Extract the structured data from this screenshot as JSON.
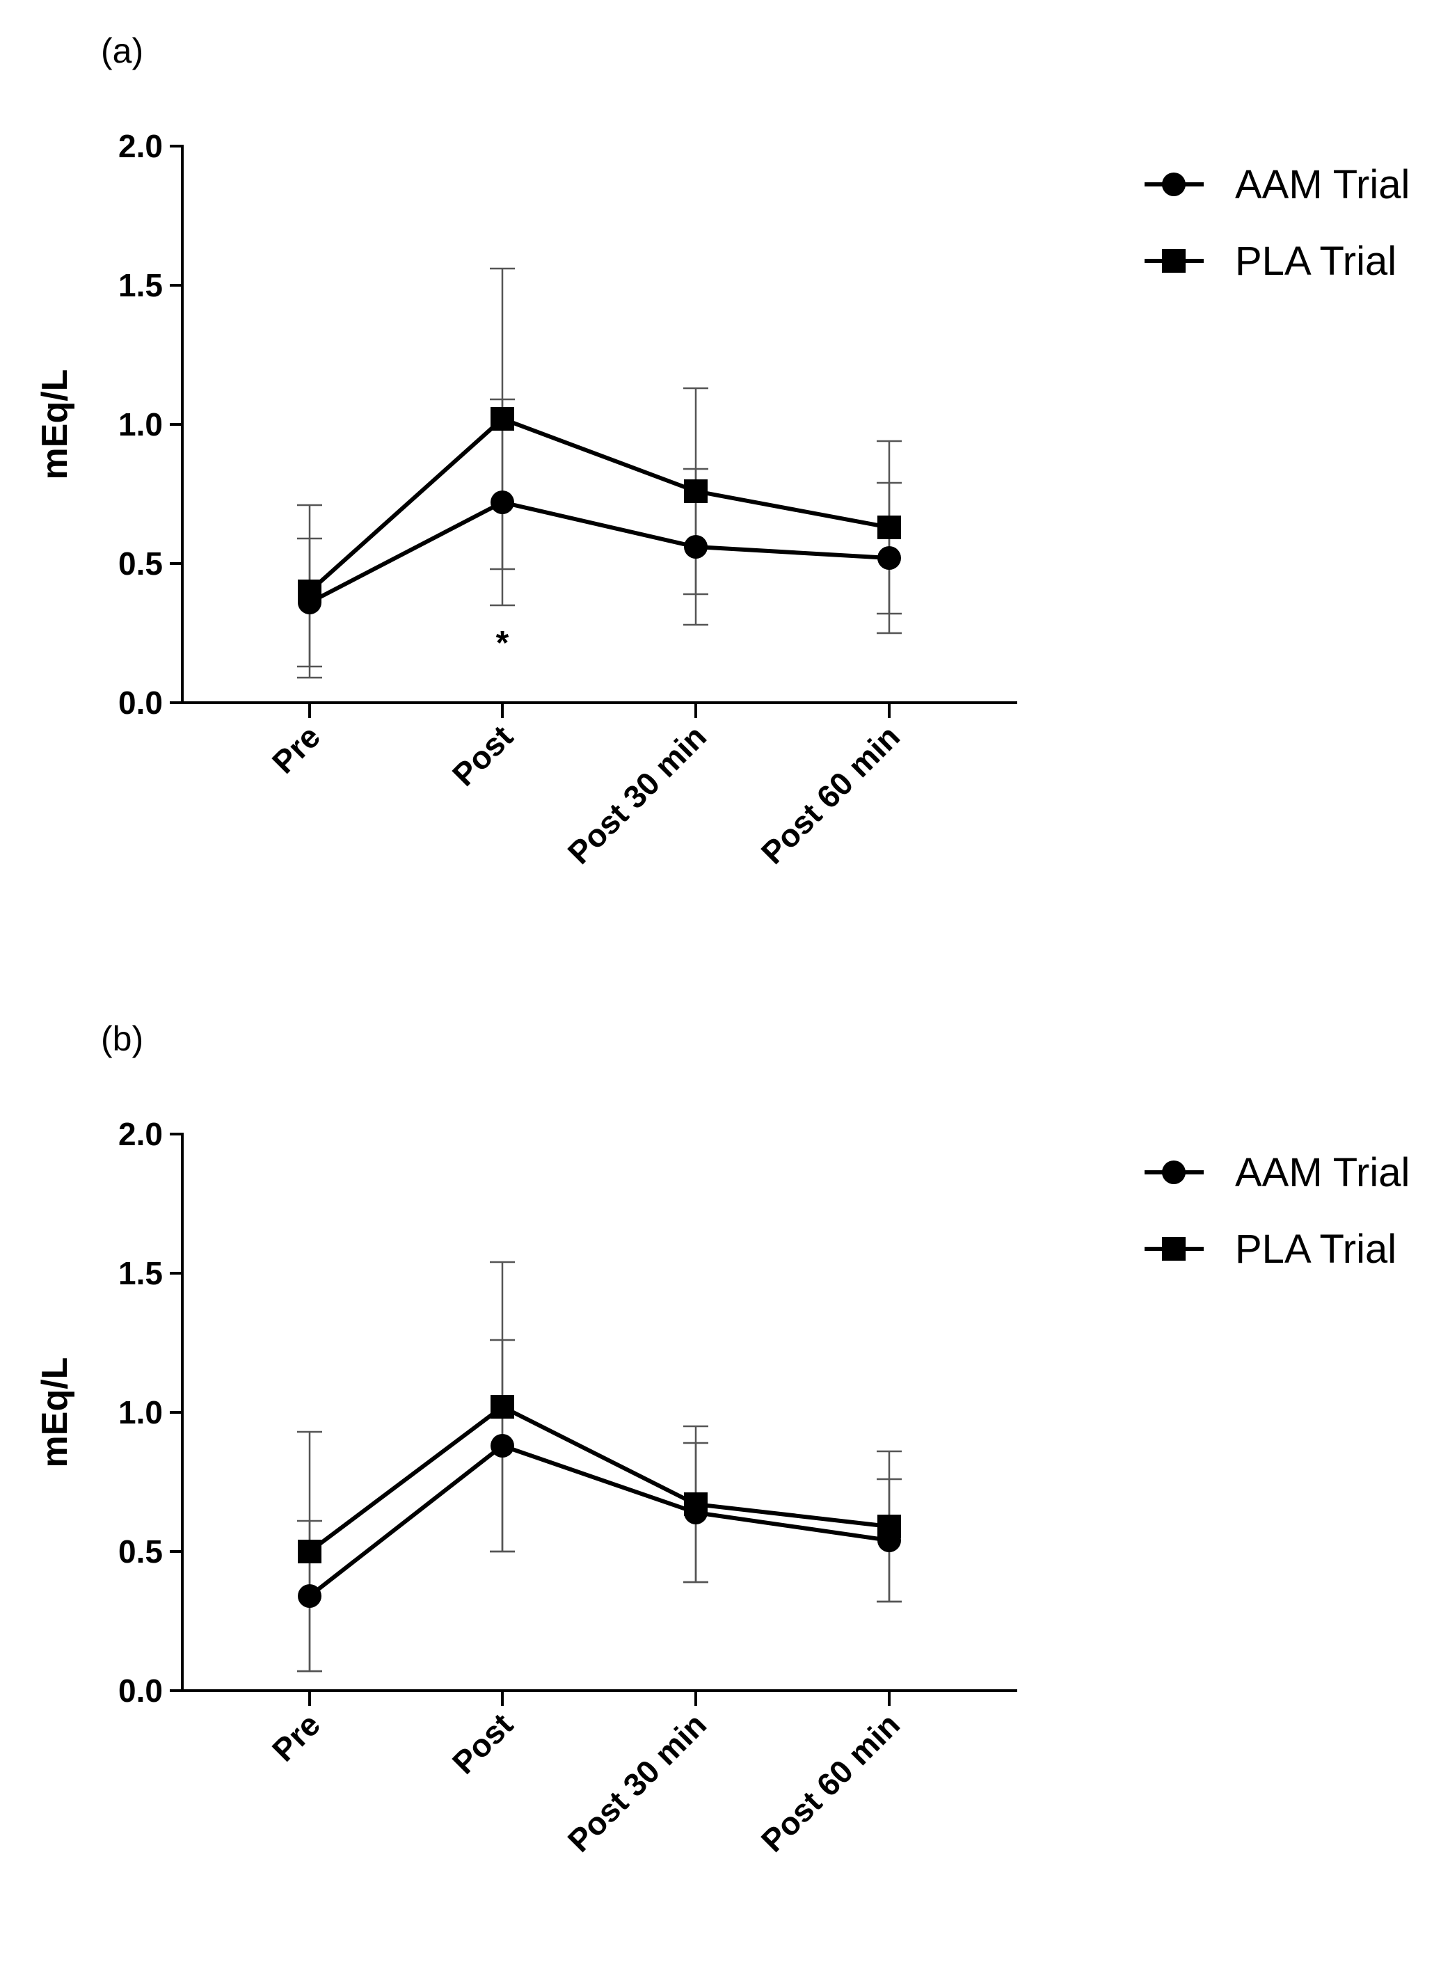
{
  "chart_data": [
    {
      "type": "line",
      "panel_label": "(a)",
      "categories": [
        "Pre",
        "Post",
        "Post 30 min",
        "Post 60 min"
      ],
      "ylabel": "mEq/L",
      "xlabel": "",
      "ylim": [
        0,
        2.0
      ],
      "yticks": [
        "0.0",
        "0.5",
        "1.0",
        "1.5",
        "2.0"
      ],
      "series": [
        {
          "name": "AAM Trial",
          "marker": "circle",
          "values": [
            0.36,
            0.72,
            0.56,
            0.52
          ],
          "errors": [
            0.23,
            0.37,
            0.28,
            0.27
          ]
        },
        {
          "name": "PLA Trial",
          "marker": "square",
          "values": [
            0.4,
            1.02,
            0.76,
            0.63
          ],
          "errors": [
            0.31,
            0.54,
            0.37,
            0.31
          ]
        }
      ],
      "annotations": [
        {
          "category": "Post",
          "text": "*"
        }
      ],
      "legend": "top-right"
    },
    {
      "type": "line",
      "panel_label": "(b)",
      "categories": [
        "Pre",
        "Post",
        "Post 30 min",
        "Post 60 min"
      ],
      "ylabel": "mEq/L",
      "xlabel": "",
      "ylim": [
        0,
        2.0
      ],
      "yticks": [
        "0.0",
        "0.5",
        "1.0",
        "1.5",
        "2.0"
      ],
      "series": [
        {
          "name": "AAM Trial",
          "marker": "circle",
          "values": [
            0.34,
            0.88,
            0.64,
            0.54
          ],
          "errors": [
            0.27,
            0.38,
            0.25,
            0.22
          ]
        },
        {
          "name": "PLA Trial",
          "marker": "square",
          "values": [
            0.5,
            1.02,
            0.67,
            0.59
          ],
          "errors": [
            0.43,
            0.52,
            0.28,
            0.27
          ]
        }
      ],
      "annotations": [],
      "legend": "top-right"
    }
  ],
  "colors": {
    "line": "#000000",
    "errorbar": "#555555"
  }
}
